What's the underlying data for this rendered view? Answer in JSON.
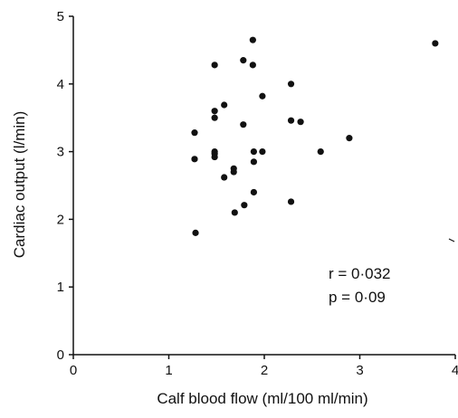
{
  "chart_data": {
    "type": "scatter",
    "xlabel": "Calf blood flow (ml/100 ml/min)",
    "ylabel": "Cardiac output (l/min)",
    "xlim": [
      0,
      4
    ],
    "ylim": [
      0,
      5
    ],
    "xticks": [
      "0",
      "1",
      "2",
      "3",
      "4"
    ],
    "yticks": [
      "0",
      "1",
      "2",
      "3",
      "4",
      "5"
    ],
    "grid": false,
    "annotations": [
      "r = 0·032",
      "p = 0·09"
    ],
    "points": [
      {
        "x": 1.28,
        "y": 1.8
      },
      {
        "x": 1.27,
        "y": 2.89
      },
      {
        "x": 1.27,
        "y": 3.28
      },
      {
        "x": 1.48,
        "y": 4.28
      },
      {
        "x": 1.48,
        "y": 3.6
      },
      {
        "x": 1.48,
        "y": 3.5
      },
      {
        "x": 1.48,
        "y": 3.0
      },
      {
        "x": 1.48,
        "y": 2.97
      },
      {
        "x": 1.48,
        "y": 2.92
      },
      {
        "x": 1.58,
        "y": 3.69
      },
      {
        "x": 1.58,
        "y": 2.62
      },
      {
        "x": 1.68,
        "y": 2.75
      },
      {
        "x": 1.68,
        "y": 2.7
      },
      {
        "x": 1.69,
        "y": 2.1
      },
      {
        "x": 1.78,
        "y": 4.35
      },
      {
        "x": 1.78,
        "y": 3.4
      },
      {
        "x": 1.79,
        "y": 2.21
      },
      {
        "x": 1.88,
        "y": 4.65
      },
      {
        "x": 1.88,
        "y": 4.28
      },
      {
        "x": 1.89,
        "y": 3.0
      },
      {
        "x": 1.89,
        "y": 2.85
      },
      {
        "x": 1.89,
        "y": 2.4
      },
      {
        "x": 1.98,
        "y": 3.82
      },
      {
        "x": 1.98,
        "y": 3.0
      },
      {
        "x": 2.28,
        "y": 4.0
      },
      {
        "x": 2.28,
        "y": 3.46
      },
      {
        "x": 2.28,
        "y": 2.26
      },
      {
        "x": 2.38,
        "y": 3.44
      },
      {
        "x": 2.59,
        "y": 3.0
      },
      {
        "x": 2.89,
        "y": 3.2
      },
      {
        "x": 3.79,
        "y": 4.6
      }
    ]
  }
}
